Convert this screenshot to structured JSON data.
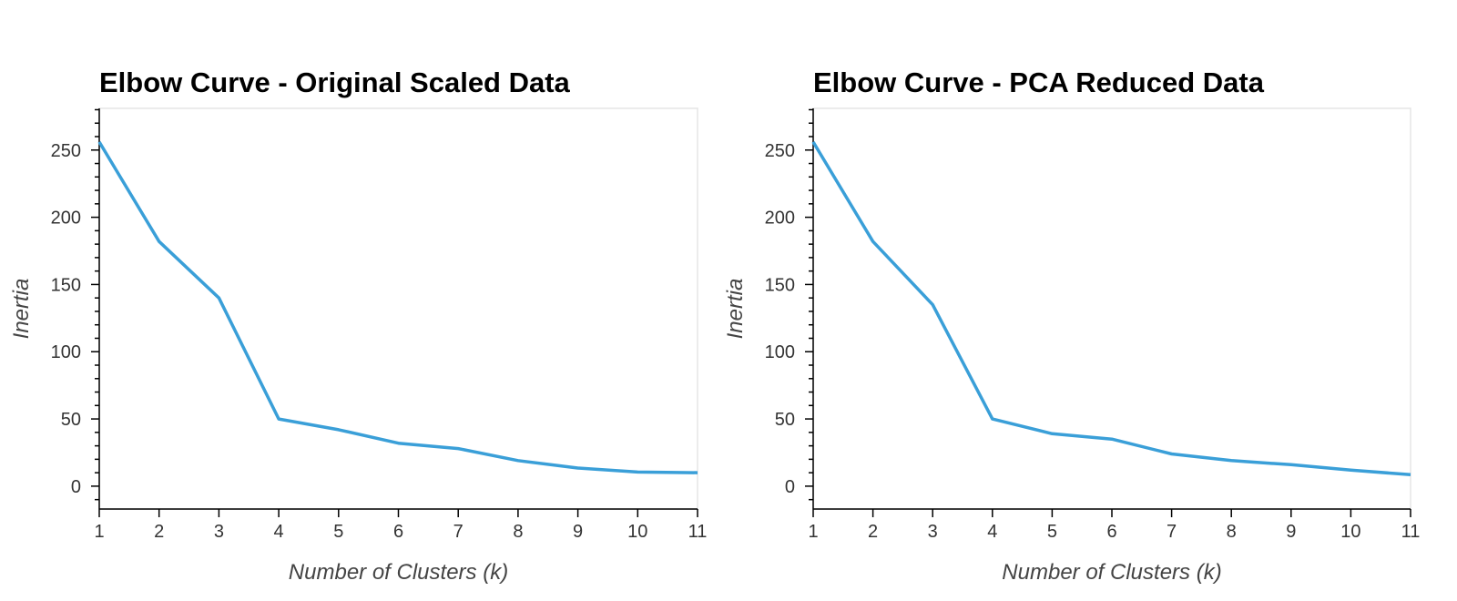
{
  "chart_data": [
    {
      "type": "line",
      "title": "Elbow Curve - Original Scaled Data",
      "xlabel": "Number of Clusters (k)",
      "ylabel": "Inertia",
      "x": [
        1,
        2,
        3,
        4,
        5,
        6,
        7,
        8,
        9,
        10,
        11
      ],
      "series": [
        {
          "values": [
            256,
            182,
            140,
            50,
            42,
            32,
            28,
            19,
            13.5,
            10.5,
            10
          ]
        }
      ],
      "xlim": [
        1,
        11
      ],
      "ylim": [
        -17,
        281
      ],
      "xticks": [
        1,
        2,
        3,
        4,
        5,
        6,
        7,
        8,
        9,
        10,
        11
      ],
      "yticks": [
        0,
        50,
        100,
        150,
        200,
        250
      ],
      "grid": false,
      "line_color": "#3a9fd8"
    },
    {
      "type": "line",
      "title": "Elbow Curve - PCA Reduced Data",
      "xlabel": "Number of Clusters (k)",
      "ylabel": "Inertia",
      "x": [
        1,
        2,
        3,
        4,
        5,
        6,
        7,
        8,
        9,
        10,
        11
      ],
      "series": [
        {
          "values": [
            256,
            182,
            135,
            50,
            39,
            35,
            24,
            19,
            16,
            12,
            8.5
          ]
        }
      ],
      "xlim": [
        1,
        11
      ],
      "ylim": [
        -17,
        281
      ],
      "xticks": [
        1,
        2,
        3,
        4,
        5,
        6,
        7,
        8,
        9,
        10,
        11
      ],
      "yticks": [
        0,
        50,
        100,
        150,
        200,
        250
      ],
      "grid": false,
      "line_color": "#3a9fd8"
    }
  ]
}
